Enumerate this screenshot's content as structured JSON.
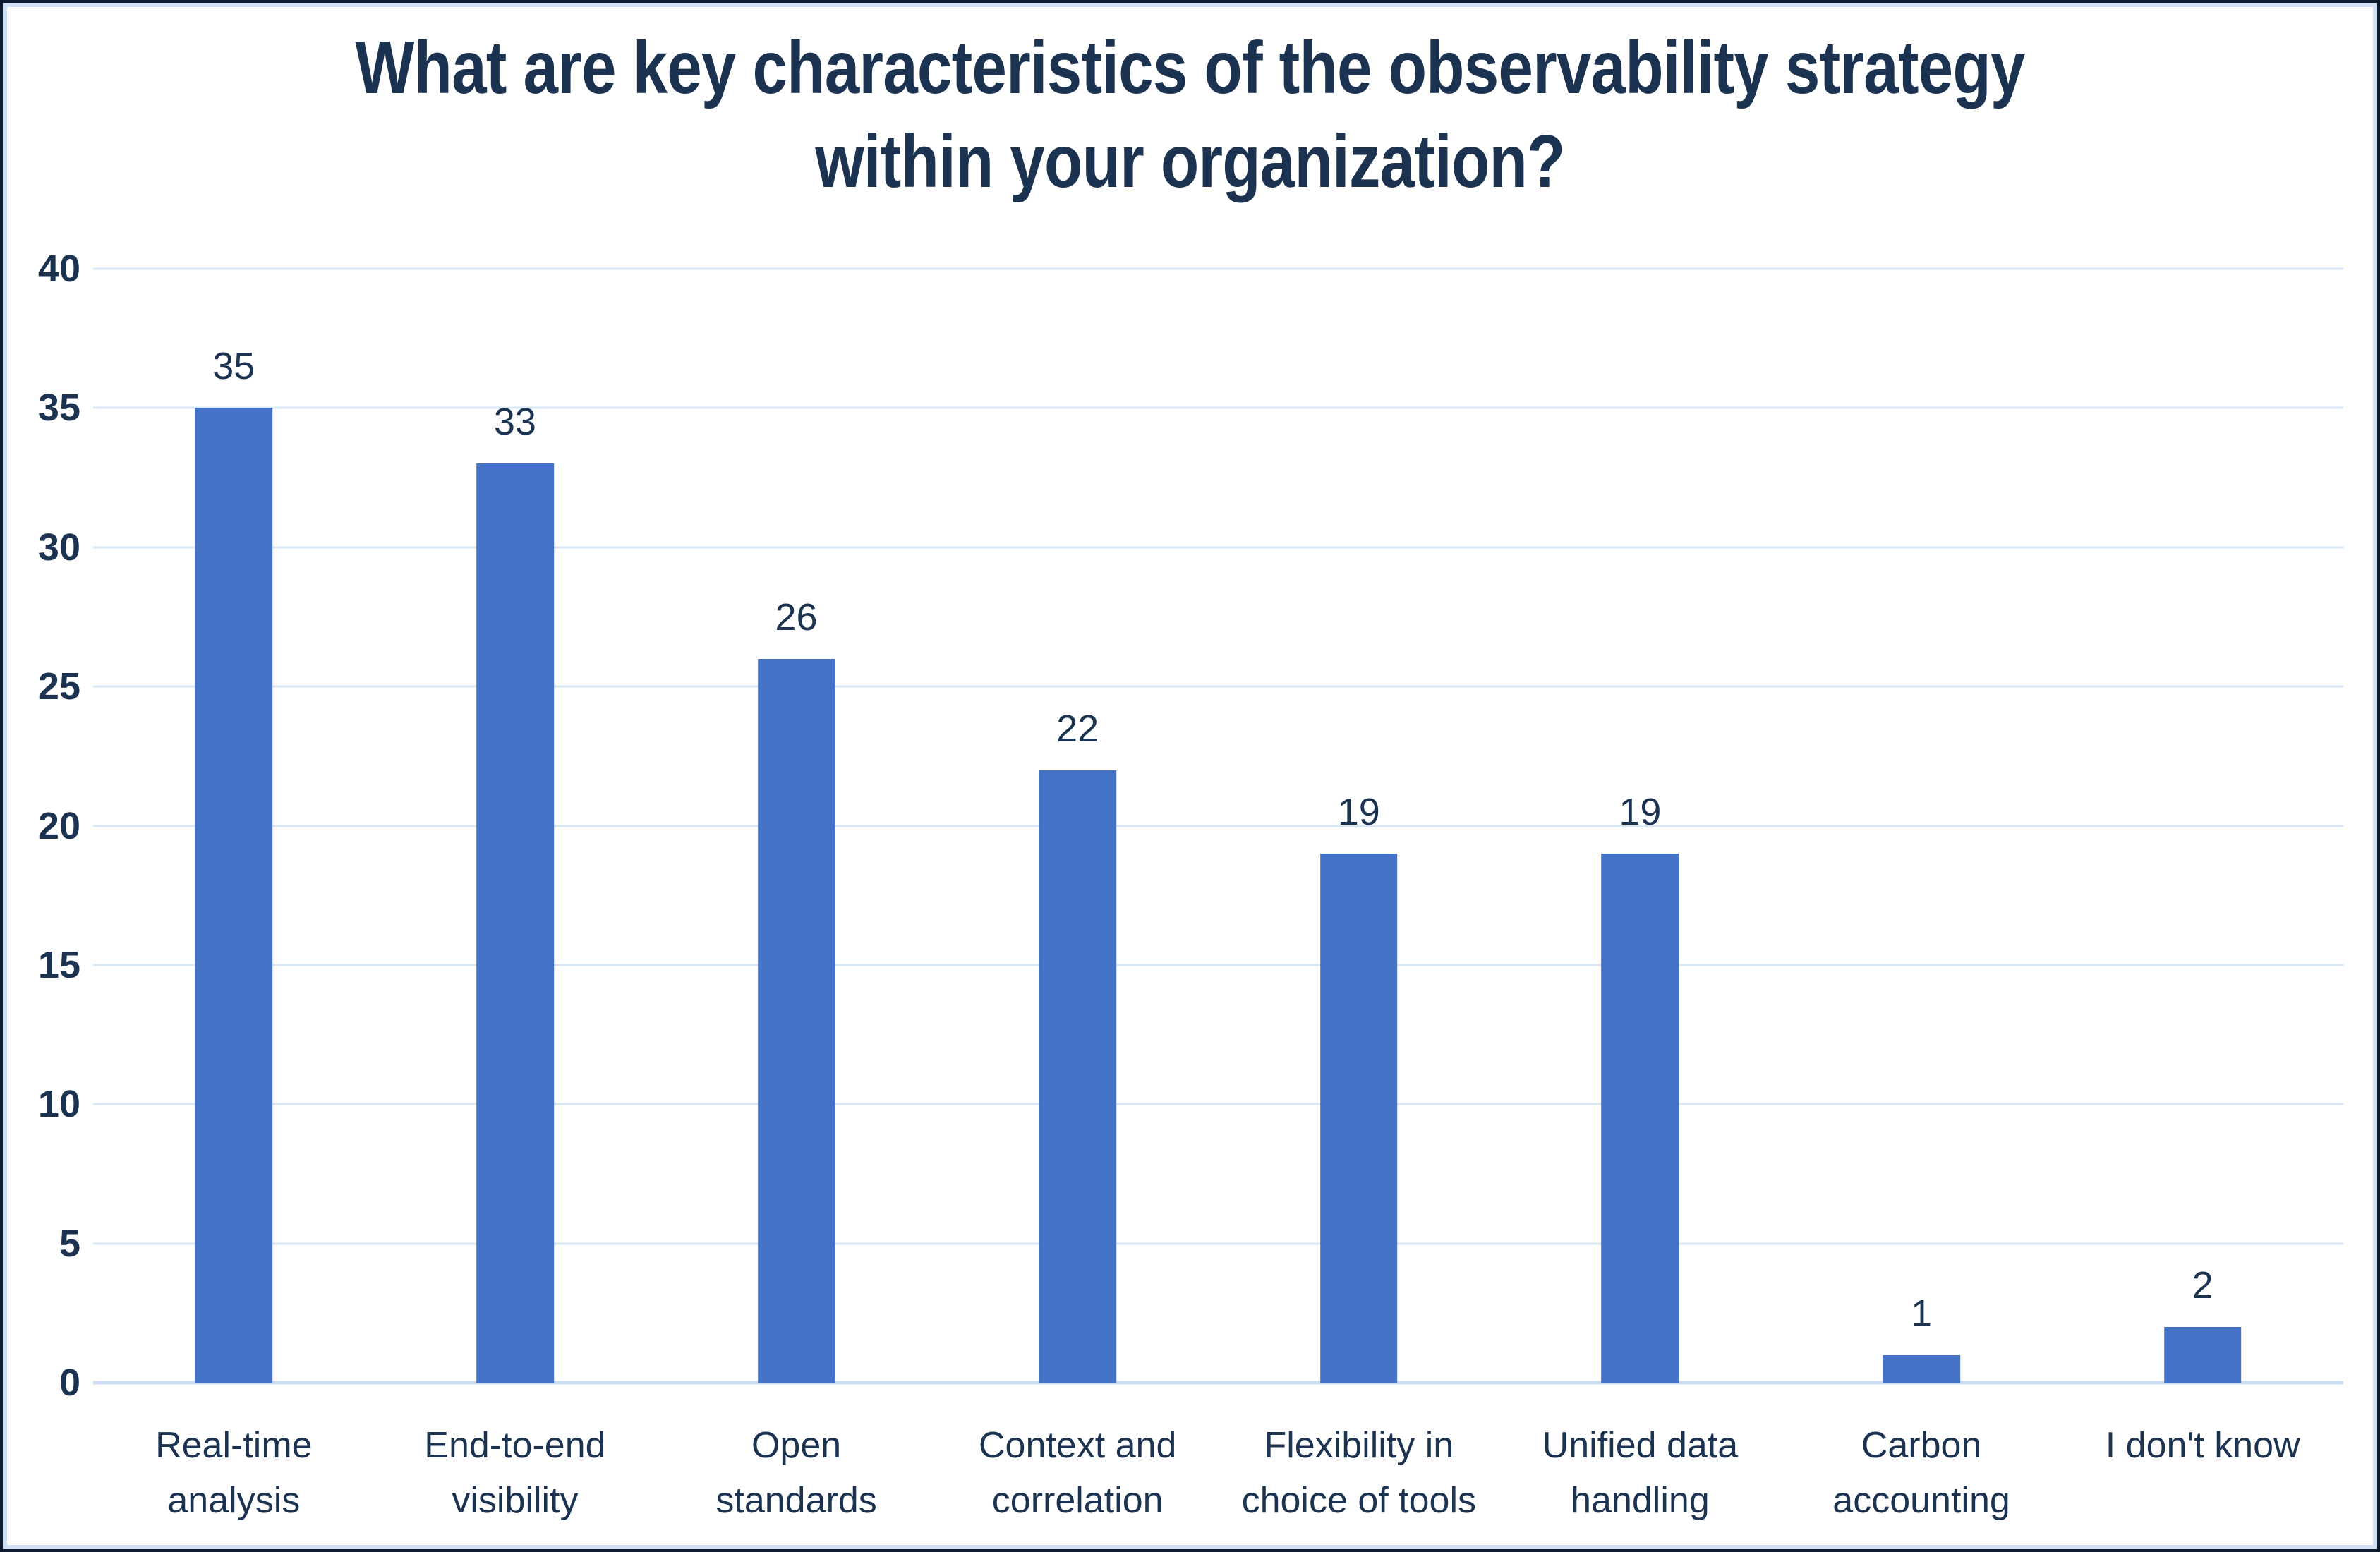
{
  "window": {
    "background": "#FFFFFF",
    "border_outer_color": "#0E1C2E",
    "border_inner_color": "#CFE0F4"
  },
  "chart_data": {
    "type": "bar",
    "title": "What are key characteristics of the observability strategy within your organization?",
    "title_lines": [
      "What are key characteristics of the observability strategy",
      "within your organization?"
    ],
    "categories": [
      "Real-time analysis",
      "End-to-end visibility",
      "Open standards",
      "Context and correlation",
      "Flexibility in choice of tools",
      "Unified data handling",
      "Carbon accounting",
      "I don't know"
    ],
    "category_label_lines": [
      [
        "Real-time",
        "analysis"
      ],
      [
        "End-to-end",
        "visibility"
      ],
      [
        "Open",
        "standards"
      ],
      [
        "Context and",
        "correlation"
      ],
      [
        "Flexibility in",
        "choice of tools"
      ],
      [
        "Unified data",
        "handling"
      ],
      [
        "Carbon",
        "accounting"
      ],
      [
        "I don't know"
      ]
    ],
    "values": [
      35,
      33,
      26,
      22,
      19,
      19,
      1,
      2
    ],
    "yticks": [
      0,
      5,
      10,
      15,
      20,
      25,
      30,
      35,
      40
    ],
    "ylim": [
      0,
      40
    ],
    "xlabel": "",
    "ylabel": "",
    "legend": "none",
    "grid": true,
    "data_labels_shown": true,
    "colors": {
      "bar": "#4472C6",
      "gridline": "#D9E6F5",
      "axis_line": "#CBDDF1",
      "text": "#1B3350"
    }
  }
}
